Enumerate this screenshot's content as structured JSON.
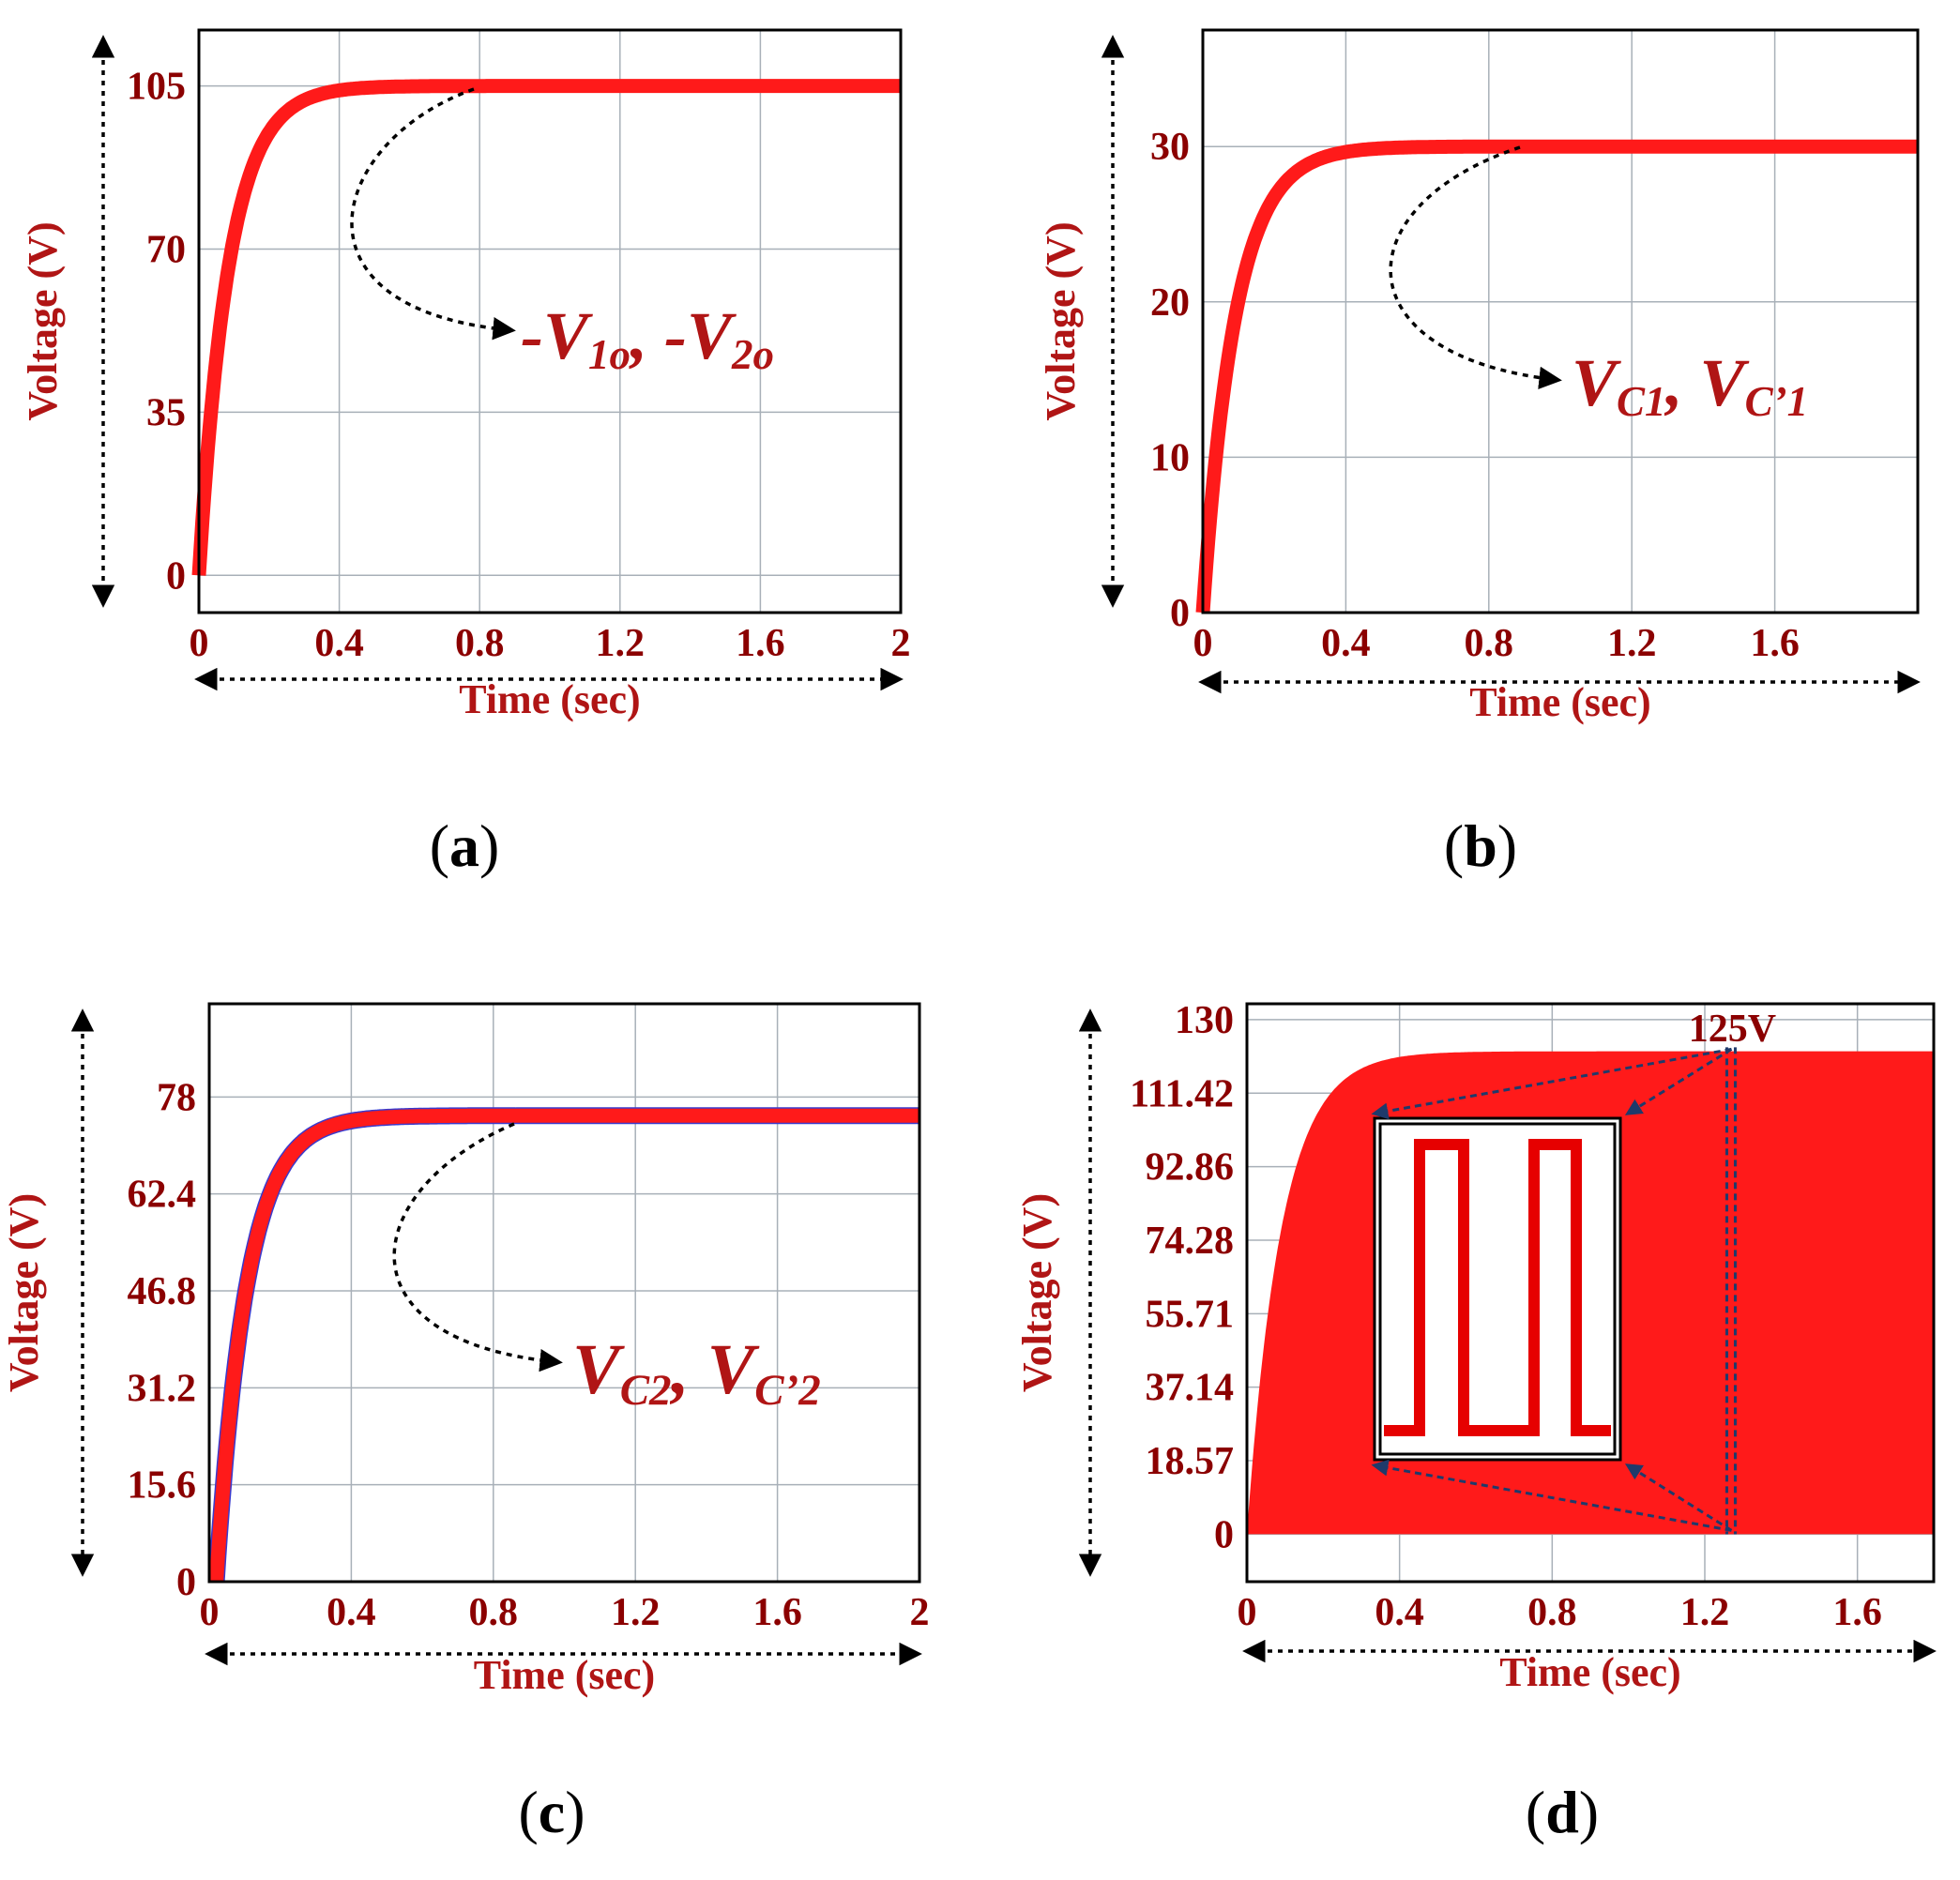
{
  "colors": {
    "trace": "#ff1a1a",
    "trace_dark": "#e60000",
    "trace_outline": "#3a3acc",
    "text": "#b01515",
    "tick": "#8b0000",
    "grid": "#a8b0b8",
    "arrow": "#1f3a6b"
  },
  "chart_data": [
    {
      "panel": "a",
      "caption": "a",
      "type": "line",
      "title": "",
      "xlabel": "Time (sec)",
      "ylabel": "Voltage (V)",
      "xlim": [
        0,
        2
      ],
      "ylim": [
        -8,
        117
      ],
      "xticks": [
        0,
        0.4,
        0.8,
        1.2,
        1.6,
        2
      ],
      "xtick_labels": [
        "0",
        "0.4",
        "0.8",
        "1.2",
        "1.6",
        "2"
      ],
      "yticks": [
        0,
        35,
        70,
        105
      ],
      "ytick_labels": [
        "0",
        "35",
        "70",
        "105"
      ],
      "grid": true,
      "series": [
        {
          "name": "-V1o, -V2o",
          "steady_value": 105,
          "time_constant": 0.085,
          "x_end": 2
        }
      ],
      "annotation": {
        "parts": [
          "-V",
          "1o",
          ", -V",
          "2o"
        ]
      }
    },
    {
      "panel": "b",
      "caption": "b",
      "type": "line",
      "title": "",
      "xlabel": "Time (sec)",
      "ylabel": "Voltage (V)",
      "xlim": [
        0,
        2
      ],
      "ylim": [
        0,
        37.5
      ],
      "xticks": [
        0,
        0.4,
        0.8,
        1.2,
        1.6
      ],
      "xtick_labels": [
        "0",
        "0.4",
        "0.8",
        "1.2",
        "1.6"
      ],
      "yticks": [
        0,
        10,
        20,
        30
      ],
      "ytick_labels": [
        "0",
        "10",
        "20",
        "30"
      ],
      "grid": true,
      "series": [
        {
          "name": "VC1, VC'1",
          "steady_value": 30,
          "time_constant": 0.09,
          "x_end": 2
        }
      ],
      "annotation": {
        "parts": [
          "V",
          "C1",
          ", V",
          "C’1"
        ]
      }
    },
    {
      "panel": "c",
      "caption": "c",
      "type": "line",
      "title": "",
      "xlabel": "Time (sec)",
      "ylabel": "Voltage (V)",
      "xlim": [
        0,
        2
      ],
      "ylim": [
        0,
        93
      ],
      "xticks": [
        0,
        0.4,
        0.8,
        1.2,
        1.6,
        2
      ],
      "xtick_labels": [
        "0",
        "0.4",
        "0.8",
        "1.2",
        "1.6",
        "2"
      ],
      "yticks": [
        0,
        15.6,
        31.2,
        46.8,
        62.4,
        78
      ],
      "ytick_labels": [
        "0",
        "15.6",
        "31.2",
        "46.8",
        "62.4",
        "78"
      ],
      "grid": true,
      "series": [
        {
          "name": "VC2, VC'2",
          "steady_value": 75,
          "time_constant": 0.085,
          "x_start": 0.02,
          "x_end": 2
        }
      ],
      "annotation": {
        "parts": [
          "V",
          "C2",
          ", V",
          "C’2"
        ]
      }
    },
    {
      "panel": "d",
      "caption": "d",
      "type": "area",
      "title": "",
      "xlabel": "Time (sec)",
      "ylabel": "Voltage (V)",
      "xlim": [
        0,
        1.8
      ],
      "ylim": [
        -12,
        134
      ],
      "xticks": [
        0,
        0.4,
        0.8,
        1.2,
        1.6
      ],
      "xtick_labels": [
        "0",
        "0.4",
        "0.8",
        "1.2",
        "1.6"
      ],
      "yticks": [
        0,
        18.57,
        37.14,
        55.71,
        74.28,
        92.86,
        111.42,
        130
      ],
      "ytick_labels": [
        "0",
        "18.57",
        "37.14",
        "55.71",
        "74.28",
        "92.86",
        "111.42",
        "130"
      ],
      "grid": true,
      "series": [
        {
          "name": "switching voltage envelope",
          "steady_value": 122,
          "time_constant": 0.09,
          "x_end": 1.8
        }
      ],
      "zoom_time": 1.27,
      "annotation": {
        "label": "125V"
      }
    }
  ]
}
